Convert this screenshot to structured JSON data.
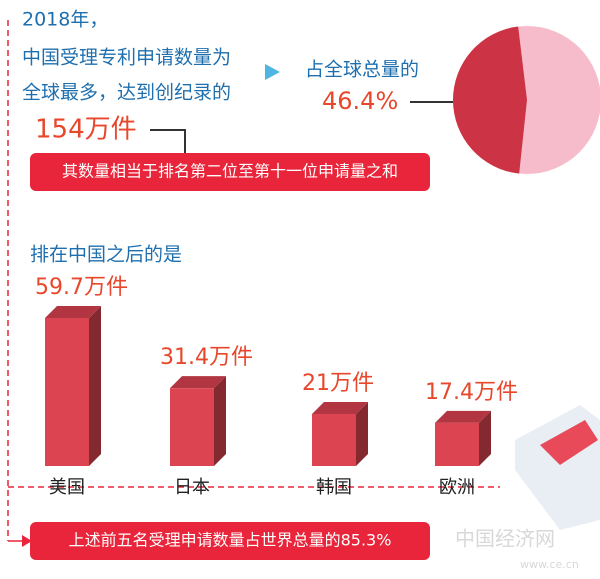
{
  "intro": {
    "lines": [
      "2018年，",
      "中国受理专利申请数量为",
      "全球最多，达到创纪录的"
    ],
    "highlight": "154万件",
    "note": "其数量相当于排名第二位至第十一位申请量之和"
  },
  "chart_data": [
    {
      "type": "pie",
      "title": "占全球总量的",
      "values": [
        46.4
      ],
      "value_labels": [
        "46.4%"
      ],
      "color": "#cc3344",
      "rest_color": "#f6bccb"
    },
    {
      "type": "bar",
      "title": "排在中国之后的是",
      "categories": [
        "美国",
        "日本",
        "韩国",
        "欧洲"
      ],
      "values": [
        59.7,
        31.4,
        21,
        17.4
      ],
      "value_labels": [
        "59.7万件",
        "31.4万件",
        "21万件",
        "17.4万件"
      ],
      "color": "#dd4452"
    }
  ],
  "footer": "上述前五名受理申请数量占世界总量的85.3%",
  "watermark": [
    "中国经济网",
    "www.ce.cn"
  ]
}
